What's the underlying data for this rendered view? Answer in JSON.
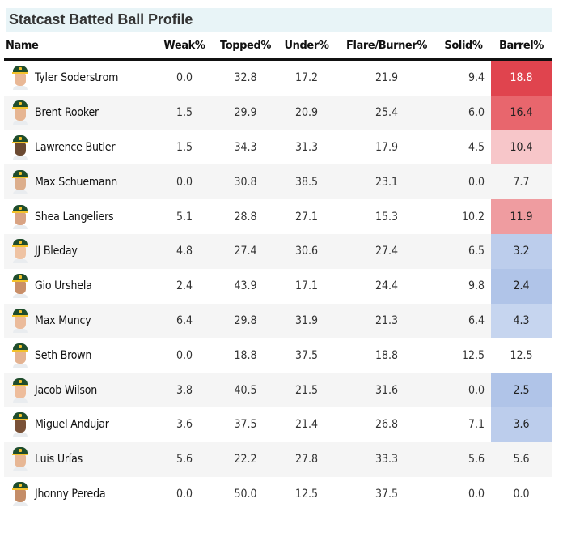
{
  "title": "Statcast Batted Ball Profile",
  "columns": [
    "Name",
    "Weak%",
    "Topped%",
    "Under%",
    "Flare/Burner%",
    "Solid%",
    "Barrel%"
  ],
  "colors": {
    "title_bg": "#e8f4f7",
    "row_alt_bg": "#f5f5f5",
    "barrel_high_1": "#e0444e",
    "barrel_high_2": "#e8666d",
    "barrel_high_3": "#ef9ca0",
    "barrel_mid_high": "#f7c6c9",
    "barrel_low_1": "#b0c4e8",
    "barrel_low_2": "#bccdec",
    "barrel_low_3": "#c6d5ef"
  },
  "rows": [
    {
      "name": "Tyler Soderstrom",
      "weak": "0.0",
      "topped": "32.8",
      "under": "17.2",
      "flare": "21.9",
      "solid": "9.4",
      "barrel": "18.8",
      "barrel_bg": "#e0444e",
      "barrel_fg": "#ffffff",
      "skin": "#e9b896"
    },
    {
      "name": "Brent Rooker",
      "weak": "1.5",
      "topped": "29.9",
      "under": "20.9",
      "flare": "25.4",
      "solid": "6.0",
      "barrel": "16.4",
      "barrel_bg": "#e8666d",
      "barrel_fg": "#222222",
      "skin": "#e6b592"
    },
    {
      "name": "Lawrence Butler",
      "weak": "1.5",
      "topped": "34.3",
      "under": "31.3",
      "flare": "17.9",
      "solid": "4.5",
      "barrel": "10.4",
      "barrel_bg": "#f7c6c9",
      "barrel_fg": "#222222",
      "skin": "#6b4a32"
    },
    {
      "name": "Max Schuemann",
      "weak": "0.0",
      "topped": "30.8",
      "under": "38.5",
      "flare": "23.1",
      "solid": "0.0",
      "barrel": "7.7",
      "barrel_bg": "",
      "barrel_fg": "#333333",
      "skin": "#dcae8c"
    },
    {
      "name": "Shea Langeliers",
      "weak": "5.1",
      "topped": "28.8",
      "under": "27.1",
      "flare": "15.3",
      "solid": "10.2",
      "barrel": "11.9",
      "barrel_bg": "#ef9ca0",
      "barrel_fg": "#222222",
      "skin": "#d9a383"
    },
    {
      "name": "JJ Bleday",
      "weak": "4.8",
      "topped": "27.4",
      "under": "30.6",
      "flare": "27.4",
      "solid": "6.5",
      "barrel": "3.2",
      "barrel_bg": "#bccdec",
      "barrel_fg": "#222222",
      "skin": "#efc3a3"
    },
    {
      "name": "Gio Urshela",
      "weak": "2.4",
      "topped": "43.9",
      "under": "17.1",
      "flare": "24.4",
      "solid": "9.8",
      "barrel": "2.4",
      "barrel_bg": "#b0c4e8",
      "barrel_fg": "#222222",
      "skin": "#c98f69"
    },
    {
      "name": "Max Muncy",
      "weak": "6.4",
      "topped": "29.8",
      "under": "31.9",
      "flare": "21.3",
      "solid": "6.4",
      "barrel": "4.3",
      "barrel_bg": "#c6d5ef",
      "barrel_fg": "#222222",
      "skin": "#ebbb9b"
    },
    {
      "name": "Seth Brown",
      "weak": "0.0",
      "topped": "18.8",
      "under": "37.5",
      "flare": "18.8",
      "solid": "12.5",
      "barrel": "12.5",
      "barrel_bg": "",
      "barrel_fg": "#333333",
      "skin": "#e4b392"
    },
    {
      "name": "Jacob Wilson",
      "weak": "3.8",
      "topped": "40.5",
      "under": "21.5",
      "flare": "31.6",
      "solid": "0.0",
      "barrel": "2.5",
      "barrel_bg": "#b0c4e8",
      "barrel_fg": "#222222",
      "skin": "#eebd9c"
    },
    {
      "name": "Miguel Andujar",
      "weak": "3.6",
      "topped": "37.5",
      "under": "21.4",
      "flare": "26.8",
      "solid": "7.1",
      "barrel": "3.6",
      "barrel_bg": "#bccdec",
      "barrel_fg": "#222222",
      "skin": "#7a5238"
    },
    {
      "name": "Luis Urías",
      "weak": "5.6",
      "topped": "22.2",
      "under": "27.8",
      "flare": "33.3",
      "solid": "5.6",
      "barrel": "5.6",
      "barrel_bg": "",
      "barrel_fg": "#333333",
      "skin": "#e7b795"
    },
    {
      "name": "Jhonny Pereda",
      "weak": "0.0",
      "topped": "50.0",
      "under": "12.5",
      "flare": "37.5",
      "solid": "0.0",
      "barrel": "0.0",
      "barrel_bg": "",
      "barrel_fg": "#333333",
      "skin": "#c48d68"
    }
  ]
}
